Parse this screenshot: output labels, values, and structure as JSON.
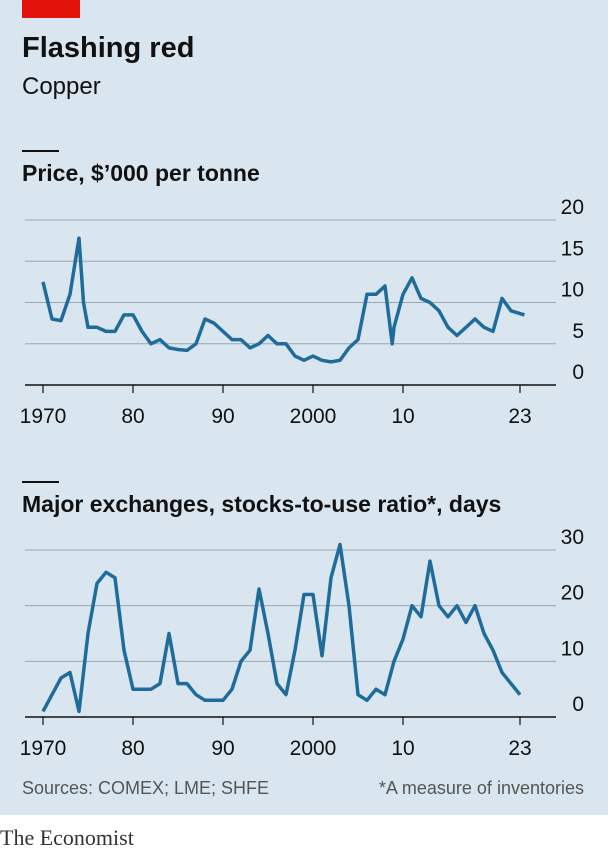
{
  "title": "Flashing red",
  "subtitle": "Copper",
  "source": "Sources: COMEX; LME; SHFE",
  "note": "*A measure of inventories",
  "brand": "The Economist",
  "chart_data": [
    {
      "type": "line",
      "title": "Price, $’000 per tonne",
      "x": [
        1970,
        1971,
        1972,
        1973,
        1974,
        1974.5,
        1975,
        1976,
        1977,
        1978,
        1979,
        1980,
        1981,
        1982,
        1983,
        1984,
        1985,
        1986,
        1987,
        1988,
        1989,
        1990,
        1991,
        1992,
        1993,
        1994,
        1995,
        1996,
        1997,
        1998,
        1999,
        2000,
        2001,
        2002,
        2003,
        2004,
        2005,
        2006,
        2007,
        2008,
        2008.8,
        2009,
        2010,
        2011,
        2012,
        2013,
        2014,
        2015,
        2016,
        2017,
        2018,
        2019,
        2020,
        2021,
        2022,
        2023.5
      ],
      "series": [
        {
          "color": "#1f6c9b",
          "values": [
            12.5,
            8,
            7.8,
            11,
            17.8,
            10,
            7,
            7,
            6.5,
            6.5,
            8.5,
            8.5,
            6.5,
            5,
            5.5,
            4.5,
            4.3,
            4.2,
            5,
            8,
            7.5,
            6.5,
            5.5,
            5.5,
            4.5,
            5,
            6,
            5,
            5,
            3.5,
            3,
            3.5,
            3,
            2.8,
            3,
            4.5,
            5.5,
            11,
            11,
            12,
            5,
            7,
            11,
            13,
            10.5,
            10,
            9,
            7,
            6,
            7,
            8,
            7,
            6.5,
            10.5,
            9,
            8.5
          ]
        }
      ],
      "xlim": [
        1968,
        2027
      ],
      "xticks": [
        1970,
        {
          "value": 1980,
          "label": "80"
        },
        {
          "value": 1990,
          "label": "90"
        },
        2000,
        {
          "value": 2010,
          "label": "10"
        },
        {
          "value": 2023,
          "label": "23"
        }
      ],
      "ylim": [
        0,
        20
      ],
      "yticks": [
        0,
        5,
        10,
        15,
        20
      ],
      "grid": true
    },
    {
      "type": "line",
      "title": "Major exchanges, stocks-to-use ratio*, days",
      "x": [
        1970,
        1971,
        1972,
        1973,
        1974,
        1975,
        1976,
        1977,
        1978,
        1979,
        1980,
        1981,
        1982,
        1983,
        1984,
        1985,
        1986,
        1987,
        1988,
        1989,
        1990,
        1991,
        1992,
        1993,
        1994,
        1995,
        1996,
        1997,
        1998,
        1999,
        2000,
        2001,
        2002,
        2003,
        2004,
        2005,
        2006,
        2007,
        2008,
        2009,
        2010,
        2011,
        2012,
        2013,
        2014,
        2015,
        2016,
        2017,
        2018,
        2019,
        2020,
        2021,
        2022,
        2023
      ],
      "series": [
        {
          "color": "#1f6c9b",
          "values": [
            1,
            4,
            7,
            8,
            1,
            15,
            24,
            26,
            25,
            12,
            5,
            5,
            5,
            6,
            15,
            6,
            6,
            4,
            3,
            3,
            3,
            5,
            10,
            12,
            23,
            15,
            6,
            4,
            12,
            22,
            22,
            11,
            25,
            31,
            20,
            4,
            3,
            5,
            4,
            10,
            14,
            20,
            18,
            28,
            20,
            18,
            20,
            17,
            20,
            15,
            12,
            8,
            6,
            4
          ]
        }
      ],
      "xlim": [
        1968,
        2027
      ],
      "xticks": [
        1970,
        {
          "value": 1980,
          "label": "80"
        },
        {
          "value": 1990,
          "label": "90"
        },
        2000,
        {
          "value": 2010,
          "label": "10"
        },
        {
          "value": 2023,
          "label": "23"
        }
      ],
      "ylim": [
        0,
        30
      ],
      "yticks": [
        0,
        10,
        20,
        30
      ],
      "grid": true
    }
  ]
}
